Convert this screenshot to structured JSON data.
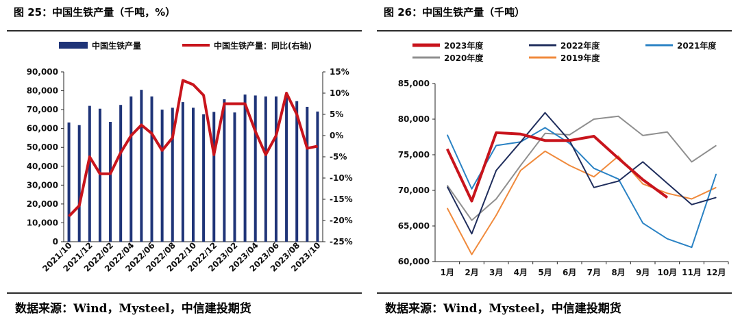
{
  "figures": [
    {
      "title": "图 25：中国生铁产量（千吨，%）",
      "source": "数据来源：Wind，Mysteel，中信建投期货"
    },
    {
      "title": "图 26：中国生铁产量（千吨）",
      "source": "数据来源：Wind，Mysteel，中信建投期货"
    }
  ],
  "chart_data": [
    {
      "type": "bar",
      "categories": [
        "2021/10",
        "2021/11",
        "2021/12",
        "2022/01",
        "2022/02",
        "2022/03",
        "2022/04",
        "2022/05",
        "2022/06",
        "2022/07",
        "2022/08",
        "2022/09",
        "2022/10",
        "2022/11",
        "2022/12",
        "2023/01",
        "2023/02",
        "2023/03",
        "2023/04",
        "2023/05",
        "2023/06",
        "2023/07",
        "2023/08",
        "2023/09",
        "2023/10"
      ],
      "tick_labels": [
        "2021/10",
        "2021/12",
        "2022/02",
        "2022/04",
        "2022/06",
        "2022/08",
        "2022/10",
        "2022/12",
        "2023/02",
        "2023/04",
        "2023/06",
        "2023/08",
        "2023/10"
      ],
      "series": [
        {
          "name": "中国生铁产量",
          "type": "bar",
          "axis": "left",
          "color": "#1f3478",
          "values": [
            63200,
            61800,
            72000,
            70500,
            63500,
            72500,
            77000,
            80500,
            77000,
            70000,
            71000,
            74000,
            71000,
            67500,
            68800,
            75500,
            68500,
            78000,
            77500,
            77000,
            77000,
            77500,
            74500,
            71500,
            69000
          ]
        },
        {
          "name": "中国生铁产量：同比(右轴)",
          "type": "line",
          "axis": "right",
          "color": "#c8141c",
          "values": [
            -19,
            -16.5,
            -5,
            -9,
            -9,
            -4,
            0,
            2.5,
            0.5,
            -3.5,
            -0.5,
            13,
            12,
            9.5,
            -4.5,
            7.5,
            7.5,
            7.5,
            1,
            -4.5,
            0,
            10,
            5,
            -3,
            -2.5
          ]
        }
      ],
      "ylim": [
        0,
        90000
      ],
      "yticks": [
        "0",
        "10,000",
        "20,000",
        "30,000",
        "40,000",
        "50,000",
        "60,000",
        "70,000",
        "80,000",
        "90,000"
      ],
      "y2lim": [
        -25,
        15
      ],
      "y2ticks": [
        "-25%",
        "-20%",
        "-15%",
        "-10%",
        "-5%",
        "0%",
        "5%",
        "10%",
        "15%"
      ],
      "legend_position": "top"
    },
    {
      "type": "line",
      "categories": [
        "1月",
        "2月",
        "3月",
        "4月",
        "5月",
        "6月",
        "7月",
        "8月",
        "9月",
        "10月",
        "11月",
        "12月"
      ],
      "series": [
        {
          "name": "2023年度",
          "color": "#c8141c",
          "width": 4,
          "values": [
            75800,
            68500,
            78100,
            77900,
            77000,
            77000,
            77600,
            74500,
            71500,
            69000,
            null,
            null
          ]
        },
        {
          "name": "2022年度",
          "color": "#1f2d5c",
          "width": 2,
          "values": [
            70500,
            63900,
            72800,
            76800,
            80900,
            77000,
            70400,
            71300,
            74000,
            71000,
            68000,
            69000
          ]
        },
        {
          "name": "2021年度",
          "color": "#2a82c4",
          "width": 2,
          "values": [
            77800,
            70200,
            76300,
            76800,
            78800,
            76600,
            73100,
            71600,
            65400,
            63200,
            62000,
            72300
          ]
        },
        {
          "name": "2020年度",
          "color": "#8f8f8f",
          "width": 2,
          "values": [
            70700,
            65800,
            68800,
            73500,
            78000,
            77800,
            80000,
            80400,
            77700,
            78200,
            74000,
            76300
          ]
        },
        {
          "name": "2019年度",
          "color": "#f08a3c",
          "width": 2,
          "values": [
            67500,
            61000,
            66500,
            72800,
            75500,
            73500,
            71900,
            74800,
            70900,
            69600,
            68800,
            70400
          ]
        }
      ],
      "ylim": [
        60000,
        85000
      ],
      "yticks": [
        "60,000",
        "65,000",
        "70,000",
        "75,000",
        "80,000",
        "85,000"
      ],
      "legend_position": "top"
    }
  ]
}
